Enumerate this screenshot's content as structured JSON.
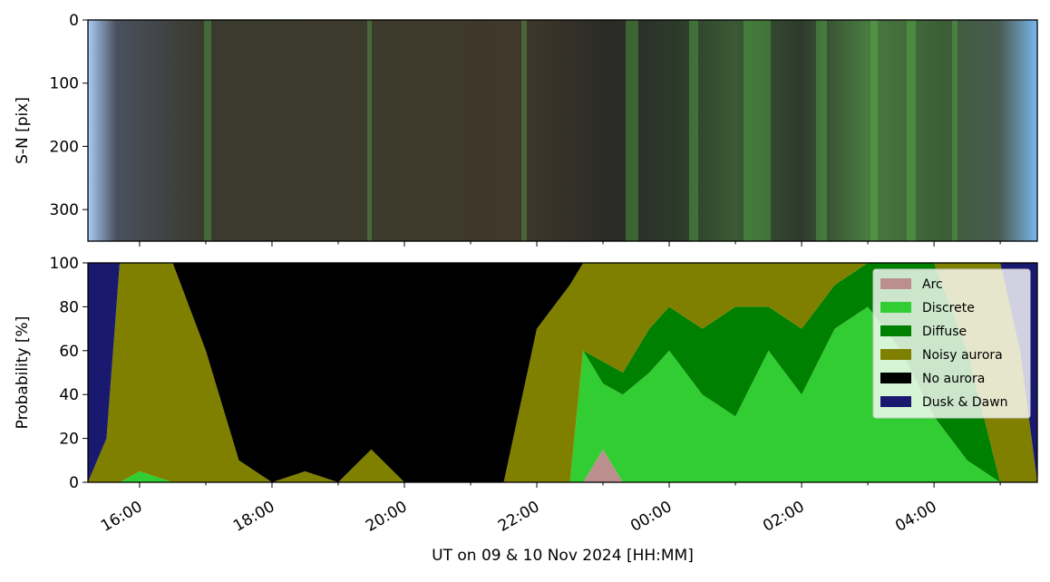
{
  "chart_data": [
    {
      "type": "image",
      "ylabel": "S-N [pix]",
      "ylim": [
        350,
        0
      ],
      "yticks": [
        0,
        100,
        200,
        300
      ],
      "xlim": [
        15.22,
        29.56
      ],
      "xticks": [
        16,
        18,
        20,
        22,
        24,
        26,
        28
      ],
      "xticks_minor": [
        17,
        19,
        21,
        23,
        25,
        27,
        29
      ]
    },
    {
      "type": "stacked_area",
      "ylabel": "Probability [%]",
      "xlabel": "UT on 09 & 10 Nov 2024 [HH:MM]",
      "xlim": [
        15.22,
        29.56
      ],
      "ylim": [
        0,
        100
      ],
      "yticks": [
        0,
        20,
        40,
        60,
        80,
        100
      ],
      "legend": "upper right",
      "xticks": [
        {
          "value": 16,
          "label": "16:00"
        },
        {
          "value": 18,
          "label": "18:00"
        },
        {
          "value": 20,
          "label": "20:00"
        },
        {
          "value": 22,
          "label": "22:00"
        },
        {
          "value": 24,
          "label": "00:00"
        },
        {
          "value": 26,
          "label": "02:00"
        },
        {
          "value": 28,
          "label": "04:00"
        }
      ],
      "xticks_minor": [
        17,
        19,
        21,
        23,
        25,
        27,
        29
      ],
      "x": [
        15.22,
        15.5,
        15.7,
        16.0,
        16.5,
        17.0,
        17.5,
        18.0,
        18.5,
        19.0,
        19.5,
        20.0,
        20.5,
        21.0,
        21.5,
        22.0,
        22.5,
        22.7,
        23.0,
        23.3,
        23.7,
        24.0,
        24.5,
        25.0,
        25.5,
        26.0,
        26.5,
        27.0,
        27.5,
        28.0,
        28.5,
        29.0,
        29.3,
        29.56
      ],
      "series": [
        {
          "name": "Arc",
          "color": "#bc8f8f",
          "values": [
            0,
            0,
            0,
            0,
            0,
            0,
            0,
            0,
            0,
            0,
            0,
            0,
            0,
            0,
            0,
            0,
            0,
            0,
            15,
            0,
            0,
            0,
            0,
            0,
            0,
            0,
            0,
            0,
            0,
            0,
            0,
            0,
            0,
            0
          ]
        },
        {
          "name": "Discrete",
          "color": "#32cd32",
          "values": [
            0,
            0,
            0,
            5,
            0,
            0,
            0,
            0,
            0,
            0,
            0,
            0,
            0,
            0,
            0,
            0,
            0,
            60,
            30,
            40,
            50,
            60,
            40,
            30,
            60,
            40,
            70,
            80,
            60,
            30,
            10,
            0,
            0,
            0
          ]
        },
        {
          "name": "Diffuse",
          "color": "#008000",
          "values": [
            0,
            0,
            0,
            0,
            0,
            0,
            0,
            0,
            0,
            0,
            0,
            0,
            0,
            0,
            0,
            0,
            0,
            0,
            10,
            10,
            20,
            20,
            30,
            50,
            20,
            30,
            20,
            20,
            40,
            70,
            50,
            0,
            0,
            0
          ]
        },
        {
          "name": "Noisy aurora",
          "color": "#808000",
          "values": [
            0,
            20,
            100,
            95,
            100,
            60,
            10,
            0,
            5,
            0,
            15,
            0,
            0,
            0,
            0,
            70,
            90,
            40,
            45,
            50,
            30,
            20,
            30,
            20,
            20,
            30,
            10,
            0,
            0,
            0,
            40,
            100,
            60,
            0
          ]
        },
        {
          "name": "No aurora",
          "color": "#000000",
          "values": [
            0,
            0,
            0,
            0,
            0,
            40,
            90,
            100,
            95,
            100,
            85,
            100,
            100,
            100,
            100,
            30,
            10,
            0,
            0,
            0,
            0,
            0,
            0,
            0,
            0,
            0,
            0,
            0,
            0,
            0,
            0,
            0,
            0,
            0
          ]
        },
        {
          "name": "Dusk & Dawn",
          "color": "#191970",
          "values": [
            100,
            80,
            0,
            0,
            0,
            0,
            0,
            0,
            0,
            0,
            0,
            0,
            0,
            0,
            0,
            0,
            0,
            0,
            0,
            0,
            0,
            0,
            0,
            0,
            0,
            0,
            0,
            0,
            0,
            0,
            0,
            0,
            40,
            100
          ]
        }
      ]
    }
  ]
}
